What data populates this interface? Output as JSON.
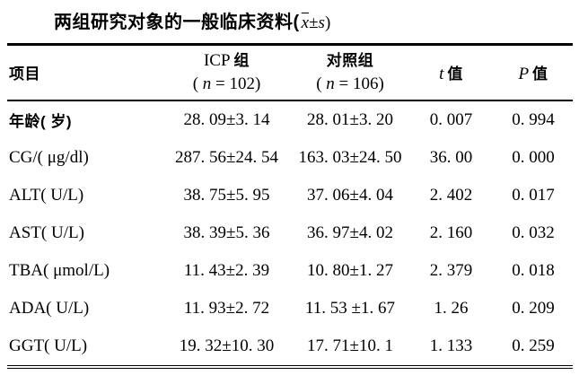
{
  "title": {
    "text": "两组研究对象的一般临床资料(",
    "xbar": "x",
    "pm": "±",
    "s": "s",
    "close": ")"
  },
  "header": {
    "item": "项目",
    "icp_group": {
      "latin": "ICP",
      "cn": "组",
      "n_open": "( ",
      "n_symbol": "n",
      "n_rest": " = 102)"
    },
    "control_group": {
      "name": "对照组",
      "n_open": "( ",
      "n_symbol": "n",
      "n_rest": " = 106)"
    },
    "t": {
      "symbol": "t",
      "label": "值"
    },
    "p": {
      "symbol": "P",
      "label": "值"
    }
  },
  "rows": [
    {
      "label": "年龄( 岁)",
      "icp": "28. 09±3. 14",
      "control": "28. 01±3. 20",
      "t": "0. 007",
      "p": "0. 994"
    },
    {
      "label": "CG/( μg/dl)",
      "icp": "287. 56±24. 54",
      "control": "163. 03±24. 50",
      "t": "36. 00",
      "p": "0. 000"
    },
    {
      "label": "ALT( U/L)",
      "icp": "38. 75±5. 95",
      "control": "37. 06±4. 04",
      "t": "2. 402",
      "p": "0. 017"
    },
    {
      "label": "AST( U/L)",
      "icp": "38. 39±5. 36",
      "control": "36. 97±4. 02",
      "t": "2. 160",
      "p": "0. 032"
    },
    {
      "label": "TBA( μmol/L)",
      "icp": "11. 43±2. 39",
      "control": "10. 80±1. 27",
      "t": "2. 379",
      "p": "0. 018"
    },
    {
      "label": "ADA( U/L)",
      "icp": "11. 93±2. 72",
      "control": "11. 53 ±1. 67",
      "t": "1. 26",
      "p": "0. 209"
    },
    {
      "label": "GGT( U/L)",
      "icp": "19. 32±10. 30",
      "control": "17. 71±10. 1",
      "t": "1. 133",
      "p": "0. 259"
    }
  ]
}
